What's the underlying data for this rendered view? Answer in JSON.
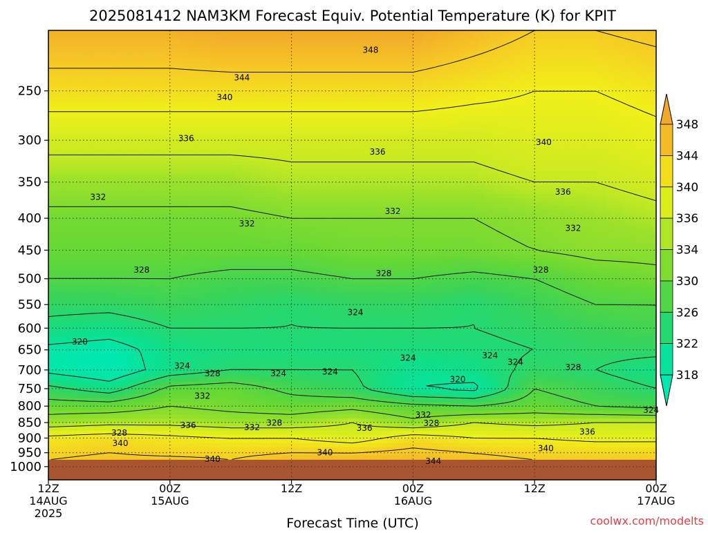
{
  "chart_data": {
    "type": "heatmap",
    "title": "2025081412 NAM3KM Forecast Equiv. Potential Temperature (K) for KPIT",
    "xlabel": "Forecast Time (UTC)",
    "ylabel": "",
    "y_scale": "log-pressure",
    "y_reversed": true,
    "ylim": [
      1050,
      200
    ],
    "y_ticks": [
      250,
      300,
      350,
      400,
      450,
      500,
      550,
      600,
      650,
      700,
      750,
      800,
      850,
      900,
      950,
      1000
    ],
    "x_range_hours": [
      0,
      60
    ],
    "x_ticks": [
      {
        "hour": 0,
        "line1": "12Z",
        "line2": "14AUG",
        "line3": "2025"
      },
      {
        "hour": 12,
        "line1": "00Z",
        "line2": "15AUG",
        "line3": ""
      },
      {
        "hour": 24,
        "line1": "12Z",
        "line2": "",
        "line3": ""
      },
      {
        "hour": 36,
        "line1": "00Z",
        "line2": "16AUG",
        "line3": ""
      },
      {
        "hour": 48,
        "line1": "12Z",
        "line2": "",
        "line3": ""
      },
      {
        "hour": 60,
        "line1": "00Z",
        "line2": "17AUG",
        "line3": ""
      }
    ],
    "grid": "dotted",
    "colorbar": {
      "labels": [
        318,
        322,
        326,
        330,
        334,
        336,
        340,
        344,
        348
      ],
      "colors": [
        "#00e8b0",
        "#10de88",
        "#3ad458",
        "#66d834",
        "#9ae12a",
        "#c8ea22",
        "#f0f018",
        "#f6cc24",
        "#f2a82a"
      ],
      "extend": "both"
    },
    "contour_levels": [
      316,
      320,
      324,
      328,
      332,
      336,
      340,
      344,
      348,
      352
    ],
    "data_pressure": [
      200,
      250,
      300,
      350,
      400,
      450,
      500,
      550,
      600,
      650,
      700,
      750,
      800,
      850,
      900,
      950,
      975
    ],
    "data_hours": [
      0,
      6,
      12,
      18,
      24,
      30,
      36,
      42,
      48,
      54,
      60
    ],
    "theta_e": [
      [
        347,
        347,
        347,
        348,
        348,
        348,
        348,
        346,
        344,
        344,
        345
      ],
      [
        342,
        342,
        342,
        342,
        342,
        342,
        342,
        341,
        340,
        340,
        341
      ],
      [
        337,
        337,
        337,
        337,
        337,
        337,
        337,
        337,
        338,
        338,
        339
      ],
      [
        334,
        334,
        334,
        334,
        335,
        335,
        335,
        335,
        336,
        336,
        337
      ],
      [
        331,
        331,
        331,
        331,
        332,
        332,
        332,
        332,
        333,
        334,
        335
      ],
      [
        330,
        330,
        330,
        330,
        330,
        331,
        331,
        331,
        332,
        333,
        333
      ],
      [
        328,
        328,
        328,
        327,
        327,
        328,
        328,
        327,
        328,
        330,
        331
      ],
      [
        325,
        325,
        326,
        325,
        324,
        325,
        325,
        324,
        326,
        328,
        328
      ],
      [
        323,
        322,
        324,
        324,
        324,
        324,
        324,
        324,
        325,
        326,
        327
      ],
      [
        319,
        318,
        322,
        323,
        323,
        323,
        323,
        323,
        324,
        325,
        325
      ],
      [
        319,
        317,
        322,
        324,
        324,
        324,
        321,
        322,
        325,
        324,
        322
      ],
      [
        325,
        322,
        329,
        330,
        327,
        325,
        320,
        319,
        328,
        326,
        324
      ],
      [
        330,
        330,
        332,
        331,
        330,
        331,
        329,
        328,
        330,
        328,
        327
      ],
      [
        334,
        335,
        335,
        334,
        334,
        336,
        333,
        336,
        335,
        336,
        336
      ],
      [
        341,
        342,
        341,
        340,
        340,
        338,
        342,
        340,
        340,
        339,
        339
      ],
      [
        343,
        344,
        343,
        343,
        344,
        344,
        345,
        344,
        343,
        343,
        343
      ],
      [
        344,
        345,
        345,
        344,
        346,
        346,
        346,
        345,
        344,
        344,
        344
      ]
    ],
    "contour_labels": [
      {
        "text": "348",
        "hour": 31.8,
        "pressure": 215
      },
      {
        "text": "344",
        "hour": 19.1,
        "pressure": 238
      },
      {
        "text": "340",
        "hour": 17.4,
        "pressure": 256
      },
      {
        "text": "336",
        "hour": 13.6,
        "pressure": 298
      },
      {
        "text": "336",
        "hour": 32.5,
        "pressure": 313
      },
      {
        "text": "340",
        "hour": 48.9,
        "pressure": 302
      },
      {
        "text": "332",
        "hour": 4.9,
        "pressure": 370
      },
      {
        "text": "336",
        "hour": 50.8,
        "pressure": 363
      },
      {
        "text": "332",
        "hour": 34,
        "pressure": 390
      },
      {
        "text": "332",
        "hour": 19.6,
        "pressure": 408
      },
      {
        "text": "332",
        "hour": 51.8,
        "pressure": 415
      },
      {
        "text": "328",
        "hour": 9.2,
        "pressure": 484
      },
      {
        "text": "328",
        "hour": 33.1,
        "pressure": 490
      },
      {
        "text": "328",
        "hour": 48.6,
        "pressure": 484
      },
      {
        "text": "324",
        "hour": 30.3,
        "pressure": 566
      },
      {
        "text": "320",
        "hour": 3.1,
        "pressure": 631
      },
      {
        "text": "324",
        "hour": 35.5,
        "pressure": 670
      },
      {
        "text": "324",
        "hour": 43.6,
        "pressure": 664
      },
      {
        "text": "324",
        "hour": 46.1,
        "pressure": 680
      },
      {
        "text": "324",
        "hour": 13.2,
        "pressure": 690
      },
      {
        "text": "328",
        "hour": 16.2,
        "pressure": 709
      },
      {
        "text": "324",
        "hour": 22.7,
        "pressure": 709
      },
      {
        "text": "324",
        "hour": 27.8,
        "pressure": 705
      },
      {
        "text": "320",
        "hour": 40.4,
        "pressure": 725
      },
      {
        "text": "328",
        "hour": 51.8,
        "pressure": 693
      },
      {
        "text": "332",
        "hour": 15.2,
        "pressure": 771
      },
      {
        "text": "324",
        "hour": 59.5,
        "pressure": 812
      },
      {
        "text": "332",
        "hour": 37,
        "pressure": 826
      },
      {
        "text": "328",
        "hour": 22.3,
        "pressure": 851
      },
      {
        "text": "328",
        "hour": 37.8,
        "pressure": 852
      },
      {
        "text": "336",
        "hour": 13.8,
        "pressure": 859
      },
      {
        "text": "332",
        "hour": 20.1,
        "pressure": 865
      },
      {
        "text": "336",
        "hour": 31.2,
        "pressure": 867
      },
      {
        "text": "336",
        "hour": 53.2,
        "pressure": 880
      },
      {
        "text": "328",
        "hour": 7,
        "pressure": 883
      },
      {
        "text": "340",
        "hour": 7.1,
        "pressure": 917
      },
      {
        "text": "340",
        "hour": 49.1,
        "pressure": 935
      },
      {
        "text": "340",
        "hour": 27.3,
        "pressure": 949
      },
      {
        "text": "340",
        "hour": 16.2,
        "pressure": 973
      },
      {
        "text": "344",
        "hour": 38,
        "pressure": 980
      }
    ],
    "surface": {
      "pressure": 975,
      "color": "#a85530"
    }
  },
  "watermark": "coolwx.com/modelts"
}
